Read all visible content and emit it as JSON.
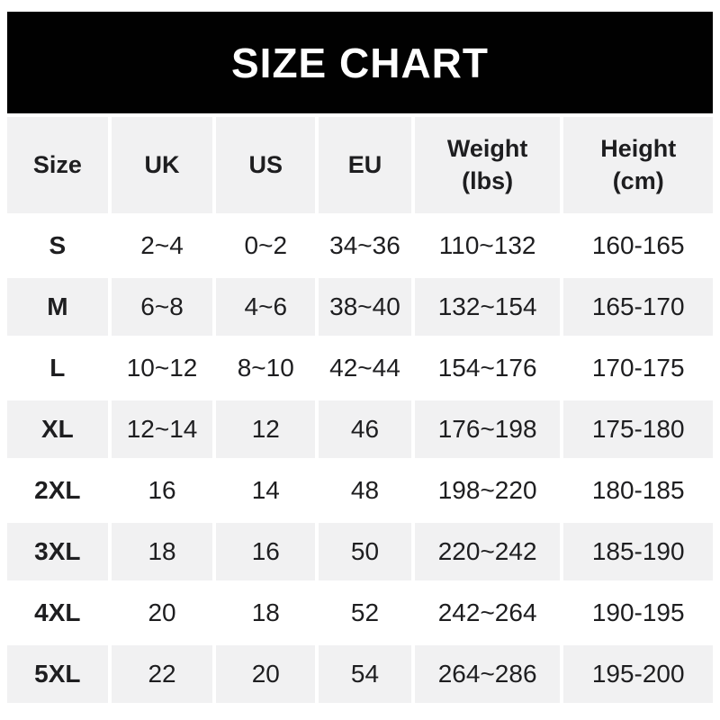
{
  "title": "SIZE CHART",
  "colors": {
    "banner_bg": "#010101",
    "banner_text": "#ffffff",
    "shade_bg": "#f1f1f2",
    "row_bg": "#ffffff",
    "text": "#1e1e20"
  },
  "table": {
    "columns": [
      {
        "label": "Size"
      },
      {
        "label": "UK"
      },
      {
        "label": "US"
      },
      {
        "label": "EU"
      },
      {
        "label": "Weight",
        "sub": "(lbs)"
      },
      {
        "label": "Height",
        "sub": "(cm)"
      }
    ],
    "rows": [
      {
        "size": "S",
        "uk": "2~4",
        "us": "0~2",
        "eu": "34~36",
        "weight": "110~132",
        "height": "160-165"
      },
      {
        "size": "M",
        "uk": "6~8",
        "us": "4~6",
        "eu": "38~40",
        "weight": "132~154",
        "height": "165-170"
      },
      {
        "size": "L",
        "uk": "10~12",
        "us": "8~10",
        "eu": "42~44",
        "weight": "154~176",
        "height": "170-175"
      },
      {
        "size": "XL",
        "uk": "12~14",
        "us": "12",
        "eu": "46",
        "weight": "176~198",
        "height": "175-180"
      },
      {
        "size": "2XL",
        "uk": "16",
        "us": "14",
        "eu": "48",
        "weight": "198~220",
        "height": "180-185"
      },
      {
        "size": "3XL",
        "uk": "18",
        "us": "16",
        "eu": "50",
        "weight": "220~242",
        "height": "185-190"
      },
      {
        "size": "4XL",
        "uk": "20",
        "us": "18",
        "eu": "52",
        "weight": "242~264",
        "height": "190-195"
      },
      {
        "size": "5XL",
        "uk": "22",
        "us": "20",
        "eu": "54",
        "weight": "264~286",
        "height": "195-200"
      }
    ]
  }
}
